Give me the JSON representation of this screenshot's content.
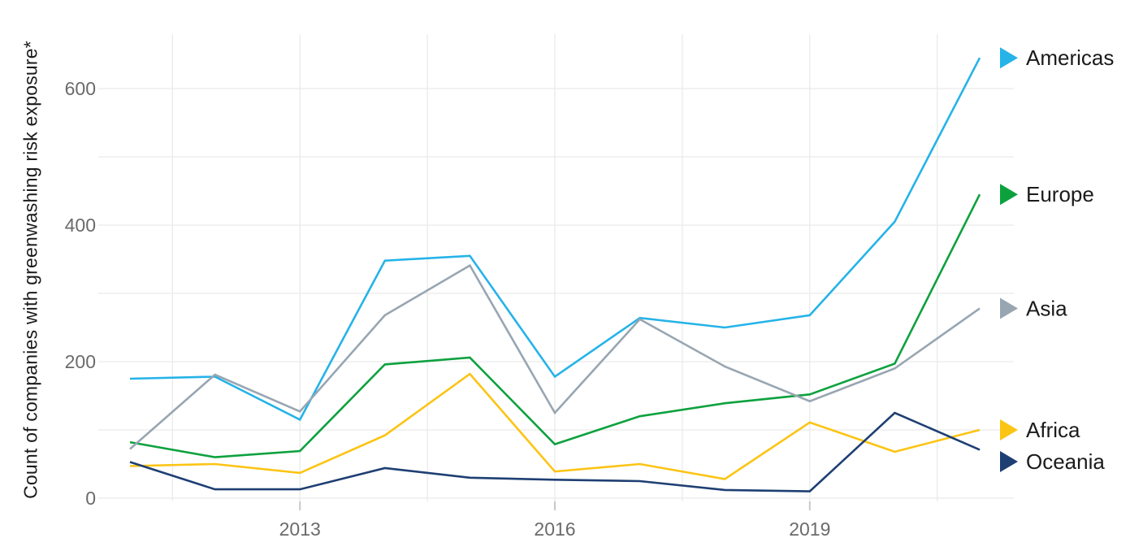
{
  "chart_data": {
    "type": "line",
    "title": "",
    "ylabel": "Count of companies with greenwashing risk exposure*",
    "xlabel": "",
    "x": [
      2011,
      2012,
      2013,
      2014,
      2015,
      2016,
      2017,
      2018,
      2019,
      2020,
      2021
    ],
    "series": [
      {
        "name": "Americas",
        "color": "#25b3e8",
        "values": [
          175,
          178,
          115,
          348,
          355,
          178,
          264,
          250,
          268,
          405,
          645
        ]
      },
      {
        "name": "Europe",
        "color": "#0da13e",
        "values": [
          82,
          60,
          69,
          196,
          206,
          79,
          120,
          139,
          152,
          197,
          445
        ]
      },
      {
        "name": "Asia",
        "color": "#98a6b2",
        "values": [
          72,
          181,
          127,
          268,
          341,
          125,
          262,
          193,
          142,
          190,
          278
        ]
      },
      {
        "name": "Africa",
        "color": "#fcc414",
        "values": [
          47,
          50,
          37,
          92,
          182,
          39,
          50,
          28,
          111,
          68,
          100
        ]
      },
      {
        "name": "Oceania",
        "color": "#1e3f73",
        "values": [
          53,
          13,
          13,
          44,
          30,
          27,
          25,
          12,
          10,
          125,
          71
        ]
      }
    ],
    "x_tick_labels": [
      "2013",
      "2016",
      "2019"
    ],
    "x_tick_years": [
      2013,
      2016,
      2019
    ],
    "x_minor_gridline_years": [
      2011.5,
      2014.5,
      2017.5,
      2020.5
    ],
    "y_tick_labels": [
      "0",
      "200",
      "400",
      "600"
    ],
    "y_ticks": [
      0,
      200,
      400,
      600
    ],
    "y_gridlines": [
      0,
      100,
      200,
      300,
      400,
      500,
      600
    ],
    "xlim": [
      2011,
      2021
    ],
    "ylim": [
      0,
      650
    ],
    "grid": true,
    "legend_position": "right",
    "legend_order": [
      "Americas",
      "Europe",
      "Asia",
      "Africa",
      "Oceania"
    ],
    "colors": {
      "background": "#ffffff",
      "gridline": "#e9eaea",
      "tick_mark": "#c9c9c9",
      "tick_label": "#6b6b6b",
      "axis_title": "#1b1b1b",
      "legend_label": "#1b1b1b"
    }
  }
}
